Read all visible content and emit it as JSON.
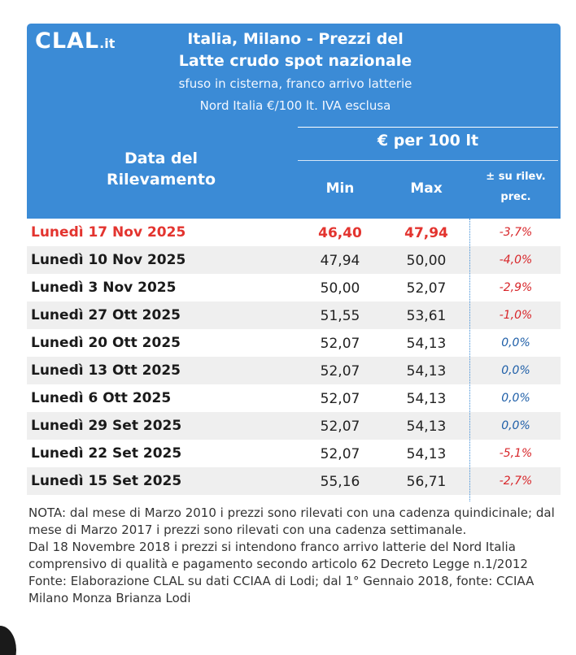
{
  "header": {
    "logo_main": "CLAL",
    "logo_tld": ".it",
    "title_line1": "Italia, Milano - Prezzi del",
    "title_line2": "Latte crudo spot nazionale",
    "subtitle_line1": "sfuso in cisterna, franco arrivo latterie",
    "subtitle_line2": "Nord Italia €/100 lt. IVA esclusa",
    "date_col_line1": "Data del",
    "date_col_line2": "Rilevamento",
    "unit_header": "€ per 100 lt",
    "min_label": "Min",
    "max_label": "Max",
    "var_label_line1": "± su rilev.",
    "var_label_line2": "prec."
  },
  "rows": [
    {
      "date": "Lunedì 17 Nov 2025",
      "min": "46,40",
      "max": "47,94",
      "var": "-3,7%",
      "var_color": "#d8262a"
    },
    {
      "date": "Lunedì 10 Nov 2025",
      "min": "47,94",
      "max": "50,00",
      "var": "-4,0%",
      "var_color": "#d8262a"
    },
    {
      "date": "Lunedì 3 Nov 2025",
      "min": "50,00",
      "max": "52,07",
      "var": "-2,9%",
      "var_color": "#d8262a"
    },
    {
      "date": "Lunedì 27 Ott 2025",
      "min": "51,55",
      "max": "53,61",
      "var": "-1,0%",
      "var_color": "#d8262a"
    },
    {
      "date": "Lunedì 20 Ott 2025",
      "min": "52,07",
      "max": "54,13",
      "var": "0,0%",
      "var_color": "#1f5fa8"
    },
    {
      "date": "Lunedì 13 Ott 2025",
      "min": "52,07",
      "max": "54,13",
      "var": "0,0%",
      "var_color": "#1f5fa8"
    },
    {
      "date": "Lunedì 6 Ott 2025",
      "min": "52,07",
      "max": "54,13",
      "var": "0,0%",
      "var_color": "#1f5fa8"
    },
    {
      "date": "Lunedì 29 Set 2025",
      "min": "52,07",
      "max": "54,13",
      "var": "0,0%",
      "var_color": "#1f5fa8"
    },
    {
      "date": "Lunedì 22 Set 2025",
      "min": "52,07",
      "max": "54,13",
      "var": "-5,1%",
      "var_color": "#d8262a"
    },
    {
      "date": "Lunedì 15 Set 2025",
      "min": "55,16",
      "max": "56,71",
      "var": "-2,7%",
      "var_color": "#d8262a"
    }
  ],
  "notes": [
    "NOTA: dal mese di Marzo 2010 i prezzi sono rilevati con una cadenza quindicinale; dal mese di Marzo 2017 i prezzi sono rilevati con una cadenza settimanale.",
    "Dal 18 Novembre 2018 i prezzi si intendono franco arrivo latterie del Nord Italia comprensivo di qualità e pagamento secondo articolo 62 Decreto Legge n.1/2012",
    "Fonte: Elaborazione CLAL su dati CCIAA di Lodi; dal 1° Gennaio 2018, fonte: CCIAA Milano Monza Brianza Lodi"
  ],
  "colors": {
    "header_bg": "#3b8bd6",
    "current_row_text": "#e3342f",
    "negative": "#d8262a",
    "neutral": "#1f5fa8"
  }
}
